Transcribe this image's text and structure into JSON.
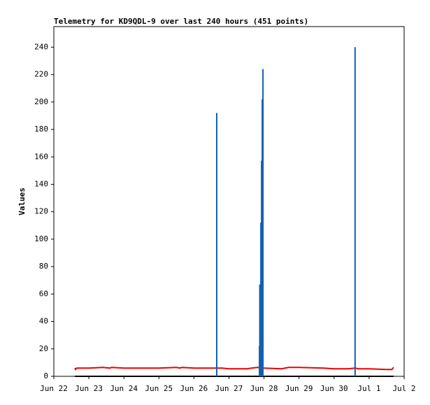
{
  "chart_data": {
    "type": "line",
    "title": "Telemetry for KD9QDL-9 over last 240 hours (451 points)",
    "y_label": "Values",
    "xlim": [
      0,
      10
    ],
    "xticks": [
      {
        "value": 0,
        "label": "Jun 22"
      },
      {
        "value": 1,
        "label": "Jun 23"
      },
      {
        "value": 2,
        "label": "Jun 24"
      },
      {
        "value": 3,
        "label": "Jun 25"
      },
      {
        "value": 4,
        "label": "Jun 26"
      },
      {
        "value": 5,
        "label": "Jun 27"
      },
      {
        "value": 6,
        "label": "Jun 28"
      },
      {
        "value": 7,
        "label": "Jun 29"
      },
      {
        "value": 8,
        "label": "Jun 30"
      },
      {
        "value": 9,
        "label": "Jul 1"
      },
      {
        "value": 10,
        "label": "Jul 2"
      }
    ],
    "ylim": [
      0,
      255
    ],
    "yticks": [
      0,
      20,
      40,
      60,
      80,
      100,
      120,
      140,
      160,
      180,
      200,
      220,
      240
    ],
    "series": [
      {
        "color": "#000000",
        "style": "line",
        "x": [
          0.6,
          9.7
        ],
        "values": [
          0,
          0
        ]
      },
      {
        "color": "#ee0000",
        "style": "line",
        "x": [
          0.6,
          0.62,
          0.65,
          1.0,
          1.4,
          1.6,
          1.65,
          2.0,
          3.0,
          3.5,
          3.6,
          3.65,
          4.0,
          4.8,
          5.0,
          5.5,
          5.8,
          6.0,
          6.5,
          6.7,
          7.0,
          7.7,
          8.0,
          8.4,
          8.6,
          8.7,
          9.0,
          9.5,
          9.65,
          9.7
        ],
        "values": [
          6,
          5,
          6,
          6,
          6.5,
          6,
          6.5,
          6,
          6,
          6.5,
          6,
          6.5,
          6,
          6,
          5.5,
          5.5,
          6.5,
          6,
          5.5,
          6.5,
          6.5,
          6,
          5.5,
          5.5,
          6,
          5.5,
          5.5,
          5,
          5,
          6.5
        ]
      },
      {
        "color": "#1060b0",
        "style": "stem",
        "x": [
          4.65,
          5.87,
          5.88,
          5.91,
          5.93,
          5.95,
          5.97,
          8.6
        ],
        "values": [
          192,
          22,
          67,
          112,
          157,
          202,
          224,
          240
        ]
      }
    ]
  }
}
